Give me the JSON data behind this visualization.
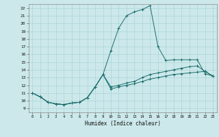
{
  "xlabel": "Humidex (Indice chaleur)",
  "bg_color": "#cce8ea",
  "grid_color": "#aad4d8",
  "line_color": "#1a6b6b",
  "xlim": [
    -0.5,
    23.5
  ],
  "ylim": [
    8.5,
    22.5
  ],
  "xticks": [
    0,
    1,
    2,
    3,
    4,
    5,
    6,
    7,
    8,
    9,
    10,
    11,
    12,
    13,
    14,
    15,
    16,
    17,
    18,
    19,
    20,
    21,
    22,
    23
  ],
  "yticks": [
    9,
    10,
    11,
    12,
    13,
    14,
    15,
    16,
    17,
    18,
    19,
    20,
    21,
    22
  ],
  "line1_x": [
    0,
    1,
    2,
    3,
    4,
    5,
    6,
    7,
    8,
    9,
    10,
    11,
    12,
    13,
    14,
    15,
    16,
    17,
    18,
    19,
    20,
    21,
    22,
    23
  ],
  "line1_y": [
    11.0,
    10.5,
    9.8,
    9.6,
    9.5,
    9.7,
    9.8,
    10.4,
    11.8,
    13.4,
    11.5,
    11.8,
    12.0,
    12.2,
    12.5,
    12.8,
    13.0,
    13.2,
    13.4,
    13.5,
    13.6,
    13.7,
    13.8,
    13.2
  ],
  "line2_x": [
    0,
    1,
    2,
    3,
    4,
    5,
    6,
    7,
    8,
    9,
    10,
    11,
    12,
    13,
    14,
    15,
    16,
    17,
    18,
    19,
    20,
    21,
    22,
    23
  ],
  "line2_y": [
    11.0,
    10.5,
    9.8,
    9.6,
    9.5,
    9.7,
    9.8,
    10.4,
    11.8,
    13.4,
    16.5,
    19.4,
    21.0,
    21.5,
    21.8,
    22.3,
    17.0,
    15.2,
    15.3,
    15.3,
    15.3,
    15.3,
    13.5,
    13.2
  ],
  "line3_x": [
    0,
    1,
    2,
    3,
    4,
    5,
    6,
    7,
    8,
    9,
    10,
    11,
    12,
    13,
    14,
    15,
    16,
    17,
    18,
    19,
    20,
    21,
    22,
    23
  ],
  "line3_y": [
    11.0,
    10.5,
    9.8,
    9.6,
    9.5,
    9.7,
    9.8,
    10.4,
    11.8,
    13.4,
    11.8,
    12.0,
    12.3,
    12.5,
    13.0,
    13.4,
    13.6,
    13.8,
    14.0,
    14.2,
    14.4,
    14.5,
    13.8,
    13.2
  ]
}
